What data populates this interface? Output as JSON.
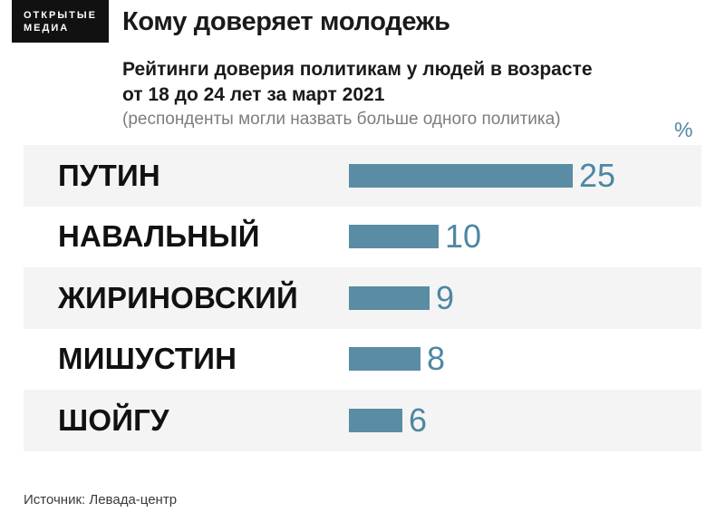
{
  "brand": {
    "logo_line1": "ОТКРЫТЫЕ",
    "logo_line2": "МЕДИА"
  },
  "header": {
    "title": "Кому доверяет молодежь",
    "subtitle_line1": "Рейтинги доверия политикам у людей в возрасте",
    "subtitle_line2": "от 18 до 24 лет за март 2021",
    "subtitle_note": "(респонденты могли назвать больше одного политика)"
  },
  "chart_data": {
    "type": "bar",
    "orientation": "horizontal",
    "title": "Кому доверяет молодежь",
    "unit_label": "%",
    "categories": [
      "ПУТИН",
      "НАВАЛЬНЫЙ",
      "ЖИРИНОВСКИЙ",
      "МИШУСТИН",
      "ШОЙГУ"
    ],
    "values": [
      25,
      10,
      9,
      8,
      6
    ],
    "xlim": [
      0,
      25
    ],
    "legend": false,
    "grid": false,
    "row_striped": true,
    "bar_color": "#5a8ca4",
    "value_color": "#4d87a2",
    "row_alt_bg": "#f4f4f4"
  },
  "footer": {
    "source": "Источник: Левада-центр"
  }
}
